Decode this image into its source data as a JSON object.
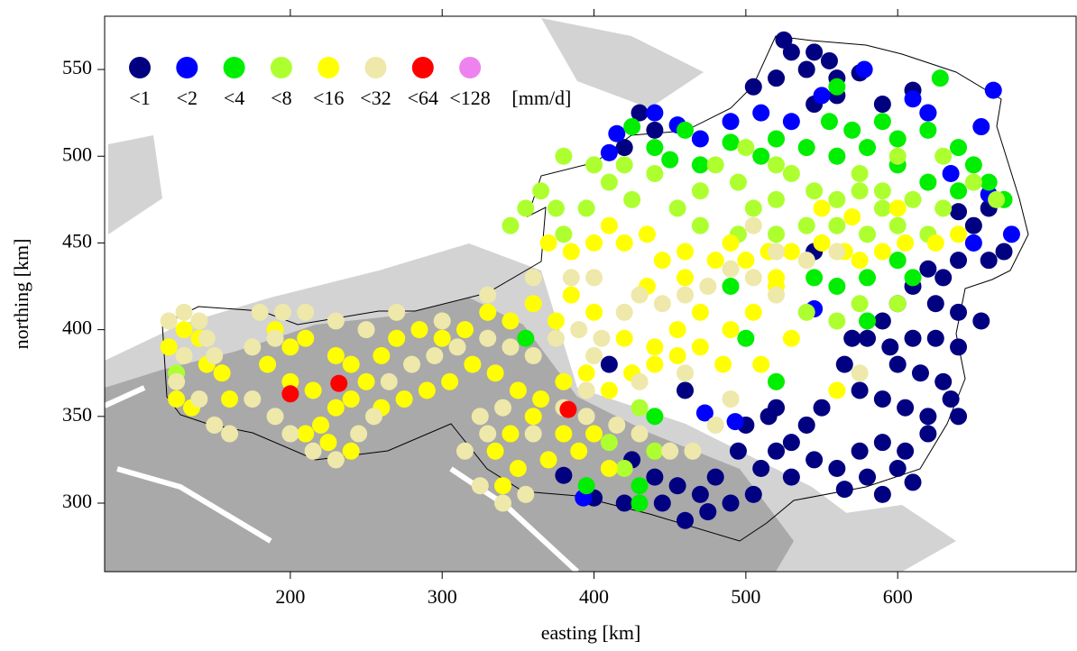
{
  "chart_data": {
    "type": "scatter",
    "xlabel": "easting [km]",
    "ylabel": "northing [km]",
    "xlim": [
      77.7,
      717.5
    ],
    "ylim": [
      260.5,
      580.7
    ],
    "xticks": [
      200,
      300,
      400,
      500,
      600
    ],
    "yticks": [
      300,
      350,
      400,
      450,
      500,
      550
    ],
    "legend_unit": "[mm/d]",
    "series": [
      {
        "name": "<1",
        "color": "#000080",
        "x": [
          525,
          530,
          545,
          555,
          540,
          520,
          505,
          560,
          575,
          560,
          590,
          610,
          620,
          545,
          430,
          440,
          420,
          640,
          660,
          650,
          670,
          660,
          640,
          630,
          620,
          610,
          625,
          640,
          655,
          600,
          590,
          580,
          595,
          610,
          625,
          640,
          600,
          615,
          630,
          570,
          565,
          575,
          590,
          605,
          620,
          635,
          550,
          540,
          530,
          545,
          560,
          575,
          590,
          605,
          620,
          600,
          580,
          565,
          530,
          520,
          510,
          505,
          490,
          475,
          460,
          470,
          480,
          495,
          500,
          515,
          455,
          445,
          440,
          420,
          400,
          425,
          460,
          590,
          610,
          640,
          545,
          410,
          380,
          520
        ],
        "y": [
          567,
          560,
          560,
          555,
          550,
          545,
          540,
          545,
          548,
          535,
          530,
          538,
          525,
          530,
          525,
          515,
          505,
          468,
          470,
          460,
          445,
          440,
          440,
          430,
          435,
          425,
          415,
          410,
          405,
          415,
          405,
          395,
          390,
          395,
          395,
          390,
          380,
          375,
          370,
          395,
          380,
          365,
          360,
          355,
          350,
          360,
          355,
          345,
          335,
          325,
          320,
          330,
          335,
          330,
          340,
          320,
          315,
          308,
          315,
          330,
          320,
          305,
          300,
          295,
          290,
          305,
          315,
          330,
          345,
          350,
          310,
          300,
          315,
          300,
          303,
          325,
          365,
          305,
          312,
          350,
          445,
          380,
          316,
          355
        ]
      },
      {
        "name": "<2",
        "color": "#0000ff",
        "x": [
          410,
          415,
          440,
          455,
          470,
          490,
          510,
          550,
          578,
          610,
          620,
          655,
          663,
          635,
          660,
          675,
          650,
          545,
          473,
          493,
          393,
          530
        ],
        "y": [
          502,
          513,
          525,
          518,
          510,
          520,
          525,
          535,
          550,
          533,
          525,
          517,
          538,
          490,
          478,
          455,
          450,
          412,
          352,
          347,
          303,
          520
        ]
      },
      {
        "name": "<4",
        "color": "#00ee00",
        "x": [
          425,
          440,
          450,
          460,
          470,
          490,
          510,
          520,
          540,
          555,
          560,
          570,
          580,
          590,
          600,
          620,
          640,
          650,
          628,
          560,
          600,
          620,
          640,
          660,
          670,
          545,
          560,
          580,
          600,
          610,
          580,
          490,
          355,
          395,
          430,
          430,
          520,
          500,
          440
        ],
        "y": [
          517,
          505,
          498,
          515,
          495,
          508,
          500,
          510,
          505,
          520,
          500,
          515,
          505,
          520,
          510,
          515,
          505,
          495,
          545,
          540,
          495,
          485,
          480,
          485,
          475,
          430,
          425,
          430,
          440,
          430,
          405,
          425,
          395,
          310,
          310,
          300,
          370,
          395,
          350
        ]
      },
      {
        "name": "<8",
        "color": "#adff2f",
        "x": [
          345,
          355,
          365,
          375,
          380,
          395,
          410,
          425,
          440,
          455,
          470,
          480,
          495,
          505,
          520,
          530,
          545,
          560,
          575,
          590,
          610,
          630,
          650,
          665,
          470,
          495,
          520,
          540,
          560,
          580,
          600,
          620,
          540,
          560,
          575,
          600,
          380,
          400,
          420,
          125,
          440,
          420,
          410,
          430,
          590,
          500,
          520,
          575,
          600,
          630
        ],
        "y": [
          460,
          470,
          480,
          470,
          455,
          470,
          485,
          475,
          490,
          470,
          480,
          495,
          485,
          470,
          475,
          490,
          480,
          475,
          480,
          480,
          475,
          470,
          485,
          475,
          460,
          455,
          455,
          460,
          460,
          455,
          460,
          455,
          410,
          405,
          415,
          415,
          500,
          495,
          495,
          375,
          330,
          320,
          335,
          355,
          470,
          505,
          495,
          490,
          500,
          500
        ]
      },
      {
        "name": "<16",
        "color": "#ffff00",
        "x": [
          370,
          385,
          400,
          410,
          420,
          435,
          445,
          460,
          480,
          500,
          515,
          530,
          550,
          565,
          575,
          590,
          605,
          625,
          640,
          550,
          570,
          600,
          520,
          505,
          490,
          470,
          455,
          440,
          420,
          400,
          385,
          375,
          360,
          345,
          330,
          315,
          300,
          285,
          270,
          260,
          250,
          240,
          230,
          210,
          200,
          190,
          185,
          200,
          215,
          230,
          220,
          210,
          225,
          240,
          260,
          275,
          290,
          305,
          320,
          335,
          350,
          365,
          380,
          395,
          410,
          425,
          440,
          455,
          470,
          485,
          120,
          130,
          140,
          145,
          125,
          135,
          155,
          160,
          380,
          390,
          370,
          350,
          335,
          345,
          400,
          410,
          360,
          510,
          530,
          560,
          520,
          490,
          460,
          435,
          240,
          340
        ],
        "y": [
          450,
          445,
          450,
          460,
          450,
          455,
          440,
          445,
          440,
          440,
          445,
          445,
          450,
          445,
          440,
          445,
          450,
          450,
          455,
          470,
          465,
          470,
          425,
          410,
          400,
          410,
          400,
          390,
          395,
          410,
          420,
          405,
          415,
          405,
          410,
          400,
          395,
          400,
          395,
          385,
          370,
          380,
          385,
          395,
          390,
          400,
          380,
          370,
          365,
          355,
          345,
          340,
          335,
          360,
          355,
          360,
          365,
          370,
          380,
          375,
          365,
          360,
          370,
          375,
          365,
          375,
          380,
          385,
          390,
          380,
          390,
          400,
          395,
          380,
          360,
          355,
          375,
          360,
          340,
          330,
          325,
          320,
          330,
          340,
          340,
          320,
          350,
          380,
          395,
          365,
          430,
          450,
          430,
          425,
          330,
          310
        ]
      },
      {
        "name": "<32",
        "color": "#eee8aa",
        "x": [
          120,
          130,
          140,
          145,
          130,
          150,
          125,
          140,
          150,
          160,
          180,
          190,
          175,
          175,
          190,
          200,
          215,
          230,
          245,
          255,
          265,
          280,
          295,
          310,
          330,
          345,
          360,
          375,
          390,
          405,
          420,
          430,
          445,
          460,
          475,
          490,
          505,
          520,
          540,
          560,
          505,
          520,
          400,
          385,
          360,
          330,
          300,
          270,
          250,
          230,
          210,
          195,
          325,
          330,
          315,
          340,
          360,
          395,
          415,
          430,
          450,
          465,
          480,
          490,
          380,
          395,
          325,
          340,
          355,
          430,
          460,
          400,
          575
        ],
        "y": [
          405,
          410,
          405,
          395,
          385,
          385,
          370,
          360,
          345,
          340,
          410,
          395,
          390,
          360,
          350,
          340,
          330,
          325,
          340,
          350,
          370,
          380,
          385,
          390,
          395,
          390,
          385,
          395,
          400,
          395,
          410,
          420,
          415,
          420,
          425,
          435,
          430,
          445,
          440,
          445,
          460,
          420,
          430,
          430,
          430,
          420,
          405,
          410,
          400,
          405,
          410,
          410,
          350,
          340,
          330,
          355,
          340,
          350,
          345,
          340,
          330,
          330,
          345,
          360,
          355,
          365,
          310,
          300,
          305,
          370,
          375,
          385,
          375
        ]
      },
      {
        "name": "<64",
        "color": "#ff0000",
        "x": [
          200,
          232,
          383
        ],
        "y": [
          363,
          369,
          354
        ]
      },
      {
        "name": "<128",
        "color": "#ee82ee",
        "x": [],
        "y": []
      }
    ]
  }
}
